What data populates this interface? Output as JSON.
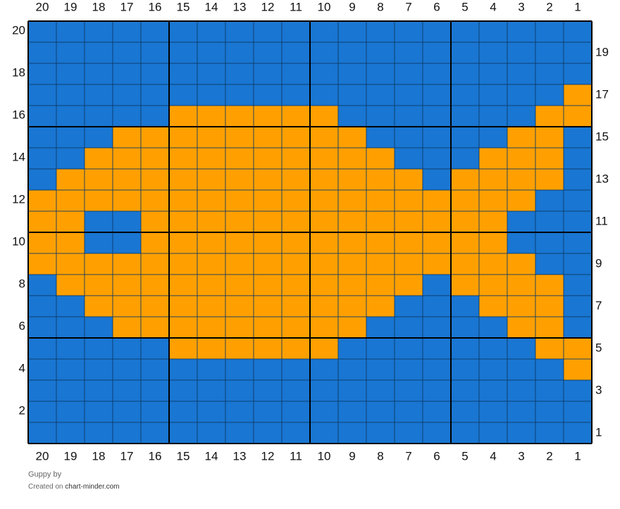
{
  "chart": {
    "column_numbers": [
      20,
      19,
      18,
      17,
      16,
      15,
      14,
      13,
      12,
      11,
      10,
      9,
      8,
      7,
      6,
      5,
      4,
      3,
      2,
      1
    ],
    "row_numbers": [
      20,
      19,
      18,
      17,
      16,
      15,
      14,
      13,
      12,
      11,
      10,
      9,
      8,
      7,
      6,
      5,
      4,
      3,
      2,
      1
    ],
    "palette": {
      "B": "#1976d2",
      "O": "#ffa000"
    },
    "rows": [
      "BBBBBBBBBBBBBBBBBBBB",
      "BBBBBBBBBBBBBBBBBBBB",
      "BBBBBBBBBBBBBBBBBBBB",
      "BBBBBBBBBBBBBBBBBBBO",
      "BBBBBOOOOOOBBBBBBBOO",
      "BBBOOOOOOOOOBBBBBOOB",
      "BBOOOOOOOOOOOBBBOOOB",
      "BOOOOOOOOOOOOOBOOOOB",
      "OOOOOOOOOOOOOOOOOOBB",
      "OOBBOOOOOOOOOOOOOBBB",
      "OOBBOOOOOOOOOOOOOBBB",
      "OOOOOOOOOOOOOOOOOOBB",
      "BOOOOOOOOOOOOOBOOOOB",
      "BBOOOOOOOOOOOBBBOOOB",
      "BBBOOOOOOOOOBBBBBOOB",
      "BBBBBOOOOOOBBBBBBBOO",
      "BBBBBBBBBBBBBBBBBBBO",
      "BBBBBBBBBBBBBBBBBBBB",
      "BBBBBBBBBBBBBBBBBBBB",
      "BBBBBBBBBBBBBBBBBBBB"
    ]
  },
  "footer": {
    "title": "Guppy",
    "by": "by",
    "created": "Created on",
    "site": "chart-minder.com"
  }
}
